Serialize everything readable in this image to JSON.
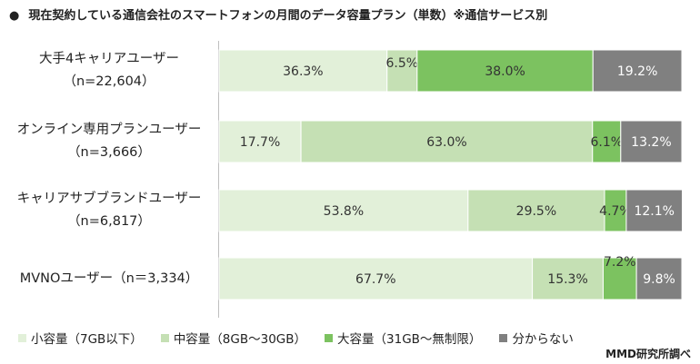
{
  "title": "現在契約している通信会社のスマートフォンの月間のデータ容量プラン（単数）※通信サービス別",
  "title_bullet": "●",
  "colors": {
    "small": "#e2f0d9",
    "medium": "#c5e0b4",
    "large": "#7cc260",
    "unknown": "#808080",
    "label_dark": "#333333",
    "label_light": "#ffffff"
  },
  "chart_data": {
    "type": "bar",
    "orientation": "horizontal",
    "stacked": true,
    "percent": true,
    "categories": [
      [
        "大手4キャリアユーザー",
        "（n=22,604）"
      ],
      [
        "オンライン専用プランユーザー",
        "（n=3,666）"
      ],
      [
        "キャリアサブブランドユーザー",
        "（n=6,817）"
      ],
      [
        "MVNOユーザー（n＝3,334）"
      ]
    ],
    "series": [
      {
        "name": "小容量（7GB以下）",
        "key": "small",
        "values": [
          36.3,
          17.7,
          53.8,
          67.7
        ]
      },
      {
        "name": "中容量（8GB～30GB）",
        "key": "medium",
        "values": [
          6.5,
          63.0,
          29.5,
          15.3
        ]
      },
      {
        "name": "大容量（31GB～無制限）",
        "key": "large",
        "values": [
          38.0,
          6.1,
          4.7,
          7.2
        ]
      },
      {
        "name": "分からない",
        "key": "unknown",
        "values": [
          19.2,
          13.2,
          12.1,
          9.8
        ]
      }
    ],
    "xlim": [
      0,
      100
    ],
    "legend_position": "bottom"
  },
  "source": "MMD研究所調べ"
}
